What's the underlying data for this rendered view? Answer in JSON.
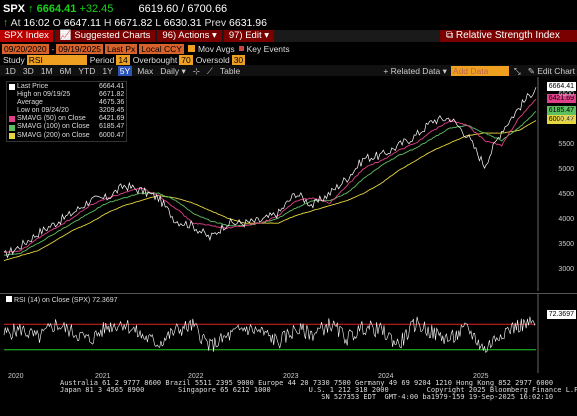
{
  "quote": {
    "symbol": "SPX",
    "arrow": "↑",
    "last": "6664.41",
    "change": "+32.45",
    "bid_ask": "6619.60 / 6700.66",
    "at_label": "At",
    "time": "16:02",
    "open_label": "O",
    "open": "6647.11",
    "high_label": "H",
    "high": "6671.82",
    "low_label": "L",
    "low": "6630.31",
    "prev_label": "Prev",
    "prev": "6631.96"
  },
  "toolbar": {
    "security": "SPX Index",
    "suggested": "Suggested Charts",
    "actions": "Actions",
    "edit": "Edit",
    "study_title": "Relative Strength Index"
  },
  "range": {
    "start": "09/20/2020",
    "end": "09/19/2025",
    "price_type": "Last Px",
    "currency": "Local CCY",
    "mov_avgs": "Mov Avgs",
    "key_events": "Key Events"
  },
  "study": {
    "label": "Study",
    "name": "RSI",
    "period_label": "Period",
    "period": "14",
    "overbought_label": "Overbought",
    "overbought": "70",
    "oversold_label": "Oversold",
    "oversold": "30"
  },
  "periods": [
    "1D",
    "3D",
    "1M",
    "6M",
    "YTD",
    "1Y",
    "5Y",
    "Max"
  ],
  "selected_period": "5Y",
  "freq": "Daily",
  "table_label": "Table",
  "related_data": "Related Data",
  "add_data": "Add Data",
  "edit_chart": "Edit Chart",
  "legend": [
    {
      "label": "Last Price",
      "value": "6664.41",
      "color": "#ffffff"
    },
    {
      "label": "High on 09/19/25",
      "value": "6671.82",
      "color": ""
    },
    {
      "label": "Average",
      "value": "4675.36",
      "color": ""
    },
    {
      "label": "Low on 09/24/20",
      "value": "3209.45",
      "color": ""
    },
    {
      "label": "SMAVG (50)  on Close",
      "value": "6421.69",
      "color": "#e0408a"
    },
    {
      "label": "SMAVG (100)  on Close",
      "value": "6185.47",
      "color": "#5fc05f"
    },
    {
      "label": "SMAVG (200)  on Close",
      "value": "6000.47",
      "color": "#e6d640"
    }
  ],
  "y_tags": [
    {
      "value": "6664.41",
      "color": "#ffffff"
    },
    {
      "value": "6421.69",
      "color": "#e0408a"
    },
    {
      "value": "6185.47",
      "color": "#5fc05f"
    },
    {
      "value": "6000.47",
      "color": "#e6d640"
    }
  ],
  "y_ticks": [
    "6500",
    "6000",
    "5500",
    "5000",
    "4500",
    "4000",
    "3500",
    "3000"
  ],
  "rsi_legend": "RSI (14)  on Close (SPX) 72.3697",
  "rsi_value": "72.3697",
  "x_ticks": [
    "2020",
    "2021",
    "2022",
    "2023",
    "2024",
    "2025"
  ],
  "footer": [
    "Australia 61 2 9777 8600 Brazil 5511 2395 9000 Europe 44 20 7330 7500 Germany 49 69 9204 1210 Hong Kong 852 2977 6000",
    "Japan 81 3 4565 8900        Singapore 65 6212 1000         U.S. 1 212 318 2000         Copyright 2025 Bloomberg Finance L.P.",
    "                                                              SN 527353 EDT  GMT-4:00 ba1979-159 19-Sep-2025 16:02:10"
  ],
  "chart_data": {
    "type": "line",
    "x": [
      "2020-09",
      "2020-11",
      "2021-01",
      "2021-03",
      "2021-05",
      "2021-07",
      "2021-09",
      "2021-11",
      "2022-01",
      "2022-03",
      "2022-05",
      "2022-07",
      "2022-09",
      "2022-11",
      "2023-01",
      "2023-03",
      "2023-05",
      "2023-07",
      "2023-09",
      "2023-11",
      "2024-01",
      "2024-03",
      "2024-05",
      "2024-07",
      "2024-09",
      "2024-11",
      "2025-01",
      "2025-03",
      "2025-04",
      "2025-05",
      "2025-07",
      "2025-09"
    ],
    "series": [
      {
        "name": "Last Price",
        "values": [
          3300,
          3500,
          3750,
          3950,
          4150,
          4400,
          4450,
          4700,
          4600,
          4450,
          4000,
          3900,
          3650,
          3950,
          3950,
          4000,
          4150,
          4550,
          4300,
          4550,
          4850,
          5250,
          5300,
          5500,
          5700,
          6000,
          6050,
          5700,
          5100,
          5800,
          6250,
          6664
        ]
      },
      {
        "name": "SMAVG (50)  on Close",
        "values": [
          3350,
          3400,
          3650,
          3850,
          4050,
          4300,
          4450,
          4550,
          4650,
          4500,
          4250,
          3950,
          3900,
          3850,
          3900,
          3950,
          4100,
          4400,
          4450,
          4350,
          4700,
          5050,
          5200,
          5400,
          5550,
          5800,
          6000,
          5900,
          5600,
          5500,
          6050,
          6421
        ]
      },
      {
        "name": "SMAVG (100)  on Close",
        "values": [
          3300,
          3350,
          3550,
          3750,
          3950,
          4150,
          4350,
          4450,
          4550,
          4550,
          4400,
          4150,
          4000,
          3900,
          3900,
          3950,
          4050,
          4250,
          4400,
          4400,
          4550,
          4850,
          5100,
          5300,
          5450,
          5650,
          5850,
          5900,
          5750,
          5600,
          5850,
          6185
        ]
      },
      {
        "name": "SMAVG (200)  on Close",
        "values": [
          3200,
          3300,
          3400,
          3600,
          3800,
          3950,
          4150,
          4300,
          4400,
          4500,
          4450,
          4350,
          4200,
          4050,
          3950,
          3950,
          3950,
          4100,
          4200,
          4300,
          4400,
          4550,
          4750,
          5000,
          5200,
          5400,
          5550,
          5700,
          5750,
          5750,
          5800,
          6000
        ]
      }
    ],
    "ylim": [
      2750,
      6750
    ],
    "grid": false,
    "legend_placement": "top-left"
  },
  "rsi_data": {
    "type": "line",
    "values": [
      55,
      62,
      48,
      70,
      58,
      45,
      66,
      72,
      52,
      40,
      60,
      68,
      35,
      50,
      64,
      58,
      42,
      62,
      55,
      70,
      48,
      66,
      60,
      38,
      72,
      56,
      46,
      64,
      30,
      58,
      68,
      72
    ],
    "ylim": [
      0,
      100
    ],
    "levels": [
      70,
      30
    ]
  }
}
